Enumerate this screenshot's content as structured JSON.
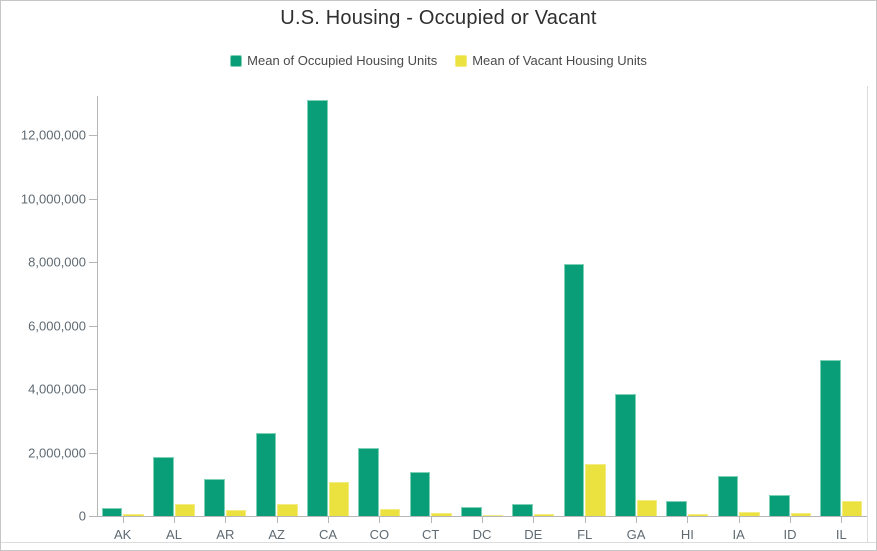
{
  "chart_data": {
    "type": "bar",
    "title": "U.S. Housing - Occupied or Vacant",
    "xlabel": "",
    "ylabel": "",
    "categories": [
      "AK",
      "AL",
      "AR",
      "AZ",
      "CA",
      "CO",
      "CT",
      "DC",
      "DE",
      "FL",
      "GA",
      "HI",
      "IA",
      "ID",
      "IL"
    ],
    "series": [
      {
        "name": "Mean of Occupied Housing Units",
        "color": "#0a9e78",
        "values": [
          250000,
          1860000,
          1160000,
          2610000,
          13110000,
          2140000,
          1380000,
          280000,
          370000,
          7940000,
          3840000,
          470000,
          1260000,
          660000,
          4900000
        ]
      },
      {
        "name": "Mean of Vacant Housing Units",
        "color": "#ece23f",
        "values": [
          60000,
          380000,
          190000,
          380000,
          1070000,
          210000,
          110000,
          30000,
          60000,
          1630000,
          500000,
          60000,
          120000,
          80000,
          460000
        ]
      }
    ],
    "yticks": [
      0,
      2000000,
      4000000,
      6000000,
      8000000,
      10000000,
      12000000
    ],
    "ytick_labels": [
      "0",
      "2,000,000",
      "4,000,000",
      "6,000,000",
      "8,000,000",
      "10,000,000",
      "12,000,000"
    ],
    "ylim": [
      0,
      13200000
    ],
    "grid": false,
    "legend_position": "top"
  }
}
